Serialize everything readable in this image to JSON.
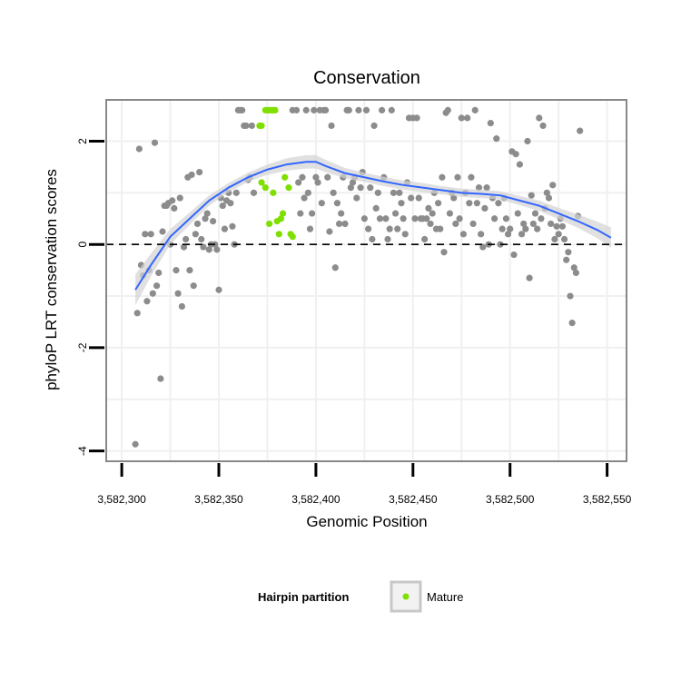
{
  "chart_data": {
    "type": "scatter",
    "title": "Conservation",
    "xlabel": "Genomic Position",
    "ylabel": "phyloP LRT conservation scores",
    "xlim": [
      3582292,
      3582560
    ],
    "ylim": [
      -4.2,
      2.8
    ],
    "x_ticks": [
      3582300,
      3582350,
      3582400,
      3582450,
      3582500,
      3582550
    ],
    "x_tick_labels": [
      "3,582,300",
      "3,582,350",
      "3,582,400",
      "3,582,450",
      "3,582,500",
      "3,582,550"
    ],
    "y_ticks": [
      -4,
      -2,
      0,
      2
    ],
    "y_tick_labels": [
      "-4",
      "-2",
      "0",
      "2"
    ],
    "y_minor_gridlines": [
      -3,
      -1,
      1
    ],
    "x_minor_gridlines": [
      3582325,
      3582375,
      3582425,
      3582475,
      3582525
    ],
    "grid": true,
    "reference_line": {
      "y": 0,
      "style": "dashed"
    },
    "legend": {
      "title": "Hairpin partition",
      "position": "bottom",
      "entries": [
        {
          "label": "Mature",
          "color": "#7FE000"
        }
      ]
    },
    "colors": {
      "points": "#8C8C8C",
      "mature": "#7FE000",
      "smooth": "#3366FF",
      "ribbon": "#D3D3D3",
      "panel_border": "#888888",
      "grid": "#F0F0F0"
    },
    "series": [
      {
        "name": "Mature",
        "color": "#7FE000",
        "points": [
          [
            3582372,
            1.2
          ],
          [
            3582371,
            2.3
          ],
          [
            3582372,
            2.3
          ],
          [
            3582374,
            2.6
          ],
          [
            3582375,
            2.6
          ],
          [
            3582376,
            2.6
          ],
          [
            3582377,
            2.6
          ],
          [
            3582378,
            2.6
          ],
          [
            3582379,
            2.6
          ],
          [
            3582374,
            1.1
          ],
          [
            3582376,
            0.4
          ],
          [
            3582378,
            1.0
          ],
          [
            3582380,
            0.45
          ],
          [
            3582382,
            0.5
          ],
          [
            3582383,
            0.6
          ],
          [
            3582384,
            1.3
          ],
          [
            3582386,
            1.1
          ],
          [
            3582387,
            0.2
          ],
          [
            3582388,
            0.15
          ],
          [
            3582381,
            0.2
          ]
        ]
      },
      {
        "color": "#8C8C8C",
        "points": [
          [
            3582307,
            -3.87
          ],
          [
            3582308,
            -1.33
          ],
          [
            3582309,
            1.85
          ],
          [
            3582310,
            -0.4
          ],
          [
            3582311,
            -0.6
          ],
          [
            3582312,
            0.2
          ],
          [
            3582313,
            -1.1
          ],
          [
            3582314,
            -0.5
          ],
          [
            3582315,
            0.2
          ],
          [
            3582316,
            -0.95
          ],
          [
            3582317,
            1.97
          ],
          [
            3582318,
            -0.8
          ],
          [
            3582319,
            -0.55
          ],
          [
            3582320,
            -2.6
          ],
          [
            3582321,
            0.25
          ],
          [
            3582322,
            0.75
          ],
          [
            3582323,
            0.75
          ],
          [
            3582324,
            0.8
          ],
          [
            3582325,
            0.0
          ],
          [
            3582326,
            0.85
          ],
          [
            3582327,
            0.7
          ],
          [
            3582328,
            -0.5
          ],
          [
            3582329,
            -0.95
          ],
          [
            3582330,
            0.9
          ],
          [
            3582331,
            -1.2
          ],
          [
            3582332,
            -0.05
          ],
          [
            3582333,
            0.1
          ],
          [
            3582334,
            1.3
          ],
          [
            3582335,
            -0.5
          ],
          [
            3582336,
            1.35
          ],
          [
            3582337,
            -0.8
          ],
          [
            3582338,
            0.2
          ],
          [
            3582339,
            0.4
          ],
          [
            3582340,
            1.4
          ],
          [
            3582341,
            0.1
          ],
          [
            3582342,
            -0.05
          ],
          [
            3582343,
            0.5
          ],
          [
            3582344,
            0.6
          ],
          [
            3582345,
            -0.1
          ],
          [
            3582346,
            0.0
          ],
          [
            3582347,
            0.45
          ],
          [
            3582348,
            0.0
          ],
          [
            3582349,
            -0.1
          ],
          [
            3582350,
            -0.88
          ],
          [
            3582351,
            0.9
          ],
          [
            3582352,
            0.75
          ],
          [
            3582353,
            0.3
          ],
          [
            3582354,
            0.85
          ],
          [
            3582355,
            1.0
          ],
          [
            3582356,
            0.8
          ],
          [
            3582357,
            0.35
          ],
          [
            3582358,
            0.0
          ],
          [
            3582359,
            1.0
          ],
          [
            3582360,
            2.6
          ],
          [
            3582361,
            2.6
          ],
          [
            3582362,
            2.6
          ],
          [
            3582363,
            2.3
          ],
          [
            3582364,
            2.3
          ],
          [
            3582365,
            1.25
          ],
          [
            3582366,
            1.3
          ],
          [
            3582367,
            2.3
          ],
          [
            3582368,
            1.0
          ],
          [
            3582388,
            2.6
          ],
          [
            3582390,
            2.6
          ],
          [
            3582391,
            1.2
          ],
          [
            3582392,
            0.6
          ],
          [
            3582393,
            1.3
          ],
          [
            3582394,
            0.9
          ],
          [
            3582395,
            2.6
          ],
          [
            3582396,
            1.0
          ],
          [
            3582397,
            0.3
          ],
          [
            3582398,
            0.6
          ],
          [
            3582399,
            2.6
          ],
          [
            3582400,
            1.3
          ],
          [
            3582401,
            1.2
          ],
          [
            3582402,
            2.6
          ],
          [
            3582403,
            0.8
          ],
          [
            3582404,
            2.6
          ],
          [
            3582405,
            2.6
          ],
          [
            3582406,
            1.3
          ],
          [
            3582407,
            0.25
          ],
          [
            3582408,
            2.3
          ],
          [
            3582409,
            1.0
          ],
          [
            3582410,
            -0.45
          ],
          [
            3582411,
            0.8
          ],
          [
            3582412,
            0.4
          ],
          [
            3582413,
            0.6
          ],
          [
            3582414,
            1.3
          ],
          [
            3582415,
            0.4
          ],
          [
            3582416,
            2.6
          ],
          [
            3582417,
            2.6
          ],
          [
            3582418,
            1.1
          ],
          [
            3582419,
            1.2
          ],
          [
            3582420,
            1.3
          ],
          [
            3582421,
            0.9
          ],
          [
            3582422,
            2.6
          ],
          [
            3582423,
            1.1
          ],
          [
            3582424,
            1.4
          ],
          [
            3582425,
            0.5
          ],
          [
            3582426,
            2.6
          ],
          [
            3582427,
            0.3
          ],
          [
            3582428,
            1.1
          ],
          [
            3582429,
            0.1
          ],
          [
            3582430,
            2.3
          ],
          [
            3582431,
            0.7
          ],
          [
            3582432,
            1.0
          ],
          [
            3582433,
            0.5
          ],
          [
            3582434,
            2.6
          ],
          [
            3582435,
            1.3
          ],
          [
            3582436,
            0.5
          ],
          [
            3582437,
            0.1
          ],
          [
            3582438,
            0.3
          ],
          [
            3582439,
            2.6
          ],
          [
            3582440,
            1.0
          ],
          [
            3582441,
            0.6
          ],
          [
            3582442,
            0.3
          ],
          [
            3582443,
            1.0
          ],
          [
            3582444,
            0.8
          ],
          [
            3582445,
            0.5
          ],
          [
            3582446,
            0.2
          ],
          [
            3582447,
            1.2
          ],
          [
            3582448,
            2.45
          ],
          [
            3582449,
            0.9
          ],
          [
            3582450,
            2.45
          ],
          [
            3582451,
            0.5
          ],
          [
            3582452,
            2.45
          ],
          [
            3582453,
            0.9
          ],
          [
            3582454,
            0.5
          ],
          [
            3582455,
            0.5
          ],
          [
            3582456,
            0.1
          ],
          [
            3582457,
            0.5
          ],
          [
            3582458,
            0.7
          ],
          [
            3582459,
            0.4
          ],
          [
            3582460,
            0.6
          ],
          [
            3582461,
            1.0
          ],
          [
            3582462,
            0.3
          ],
          [
            3582463,
            0.8
          ],
          [
            3582464,
            0.3
          ],
          [
            3582465,
            1.3
          ],
          [
            3582466,
            -0.15
          ],
          [
            3582467,
            2.55
          ],
          [
            3582468,
            2.6
          ],
          [
            3582469,
            0.6
          ],
          [
            3582470,
            1.0
          ],
          [
            3582471,
            0.9
          ],
          [
            3582472,
            0.4
          ],
          [
            3582473,
            1.3
          ],
          [
            3582474,
            0.5
          ],
          [
            3582475,
            2.45
          ],
          [
            3582476,
            0.2
          ],
          [
            3582477,
            1.0
          ],
          [
            3582478,
            2.45
          ],
          [
            3582479,
            0.8
          ],
          [
            3582480,
            1.3
          ],
          [
            3582481,
            0.4
          ],
          [
            3582482,
            2.6
          ],
          [
            3582483,
            0.8
          ],
          [
            3582484,
            1.1
          ],
          [
            3582485,
            0.2
          ],
          [
            3582486,
            -0.05
          ],
          [
            3582487,
            0.7
          ],
          [
            3582488,
            1.1
          ],
          [
            3582489,
            0.0
          ],
          [
            3582490,
            2.35
          ],
          [
            3582491,
            0.9
          ],
          [
            3582492,
            0.5
          ],
          [
            3582493,
            2.05
          ],
          [
            3582494,
            0.8
          ],
          [
            3582495,
            0.0
          ],
          [
            3582496,
            0.3
          ],
          [
            3582497,
            0.9
          ],
          [
            3582498,
            0.5
          ],
          [
            3582499,
            0.2
          ],
          [
            3582500,
            0.3
          ],
          [
            3582501,
            1.8
          ],
          [
            3582502,
            -0.2
          ],
          [
            3582503,
            1.75
          ],
          [
            3582504,
            0.6
          ],
          [
            3582505,
            1.55
          ],
          [
            3582506,
            0.2
          ],
          [
            3582507,
            0.4
          ],
          [
            3582508,
            0.3
          ],
          [
            3582509,
            2.0
          ],
          [
            3582510,
            -0.65
          ],
          [
            3582511,
            0.95
          ],
          [
            3582512,
            0.4
          ],
          [
            3582513,
            0.6
          ],
          [
            3582514,
            0.3
          ],
          [
            3582515,
            2.45
          ],
          [
            3582516,
            0.5
          ],
          [
            3582517,
            2.3
          ],
          [
            3582518,
            0.7
          ],
          [
            3582519,
            1.0
          ],
          [
            3582520,
            0.9
          ],
          [
            3582521,
            0.4
          ],
          [
            3582522,
            1.15
          ],
          [
            3582523,
            0.1
          ],
          [
            3582524,
            0.35
          ],
          [
            3582525,
            0.2
          ],
          [
            3582526,
            0.5
          ],
          [
            3582527,
            0.35
          ],
          [
            3582528,
            0.1
          ],
          [
            3582529,
            -0.3
          ],
          [
            3582530,
            -0.15
          ],
          [
            3582531,
            -1.0
          ],
          [
            3582532,
            -1.52
          ],
          [
            3582533,
            -0.45
          ],
          [
            3582534,
            -0.55
          ],
          [
            3582535,
            0.55
          ],
          [
            3582536,
            2.2
          ]
        ]
      }
    ],
    "smooth": {
      "name": "loess",
      "color": "#3366FF",
      "x": [
        3582307,
        3582315,
        3582325,
        3582335,
        3582345,
        3582355,
        3582365,
        3582375,
        3582385,
        3582395,
        3582400,
        3582405,
        3582415,
        3582425,
        3582435,
        3582445,
        3582455,
        3582465,
        3582475,
        3582485,
        3582495,
        3582505,
        3582515,
        3582525,
        3582535,
        3582545,
        3582552
      ],
      "y": [
        -0.88,
        -0.4,
        0.15,
        0.5,
        0.85,
        1.1,
        1.3,
        1.45,
        1.55,
        1.6,
        1.6,
        1.52,
        1.38,
        1.3,
        1.22,
        1.15,
        1.1,
        1.05,
        1.0,
        0.98,
        0.95,
        0.85,
        0.75,
        0.6,
        0.45,
        0.28,
        0.13
      ],
      "ci_half_width": [
        0.3,
        0.22,
        0.15,
        0.12,
        0.1,
        0.09,
        0.09,
        0.1,
        0.12,
        0.13,
        0.13,
        0.12,
        0.1,
        0.09,
        0.09,
        0.09,
        0.09,
        0.08,
        0.08,
        0.08,
        0.08,
        0.09,
        0.1,
        0.11,
        0.13,
        0.16,
        0.2
      ]
    }
  }
}
